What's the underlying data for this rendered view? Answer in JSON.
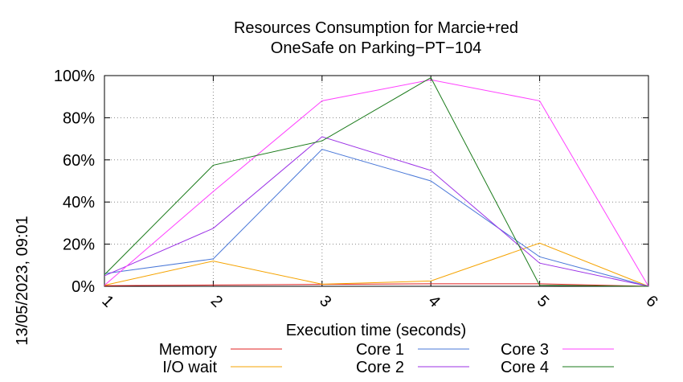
{
  "chart_data": {
    "type": "line",
    "title": [
      "Resources Consumption for Marcie+red",
      "OneSafe on Parking−PT−104"
    ],
    "side_label": "13/05/2023, 09:01",
    "xlabel": "Execution time (seconds)",
    "ylabel": "",
    "x": [
      1,
      2,
      3,
      4,
      5,
      6
    ],
    "x_ticks": [
      "1",
      "2",
      "3",
      "4",
      "5",
      "6"
    ],
    "xlim": [
      1,
      6
    ],
    "ylim": [
      0,
      100
    ],
    "y_ticks": [
      "0%",
      "20%",
      "40%",
      "60%",
      "80%",
      "100%"
    ],
    "y_tick_values": [
      0,
      20,
      40,
      60,
      80,
      100
    ],
    "grid": true,
    "legend_position": "bottom",
    "series": [
      {
        "name": "Memory",
        "color": "#e02020",
        "values": [
          0.3,
          0.6,
          0.9,
          1.2,
          1.2,
          0
        ]
      },
      {
        "name": "I/O wait",
        "color": "#f5a300",
        "values": [
          0.5,
          12,
          1,
          2.5,
          20.5,
          0
        ]
      },
      {
        "name": "Core 1",
        "color": "#4a78d8",
        "values": [
          6,
          13,
          65,
          50,
          14,
          0
        ]
      },
      {
        "name": "Core 2",
        "color": "#9b30e6",
        "values": [
          5,
          27.5,
          71,
          55,
          11,
          0
        ]
      },
      {
        "name": "Core 3",
        "color": "#ff40ff",
        "values": [
          0.5,
          45,
          88,
          98,
          88,
          0
        ]
      },
      {
        "name": "Core 4",
        "color": "#1a7a1a",
        "values": [
          5.5,
          57.5,
          69,
          99,
          0.5,
          0
        ]
      }
    ]
  }
}
